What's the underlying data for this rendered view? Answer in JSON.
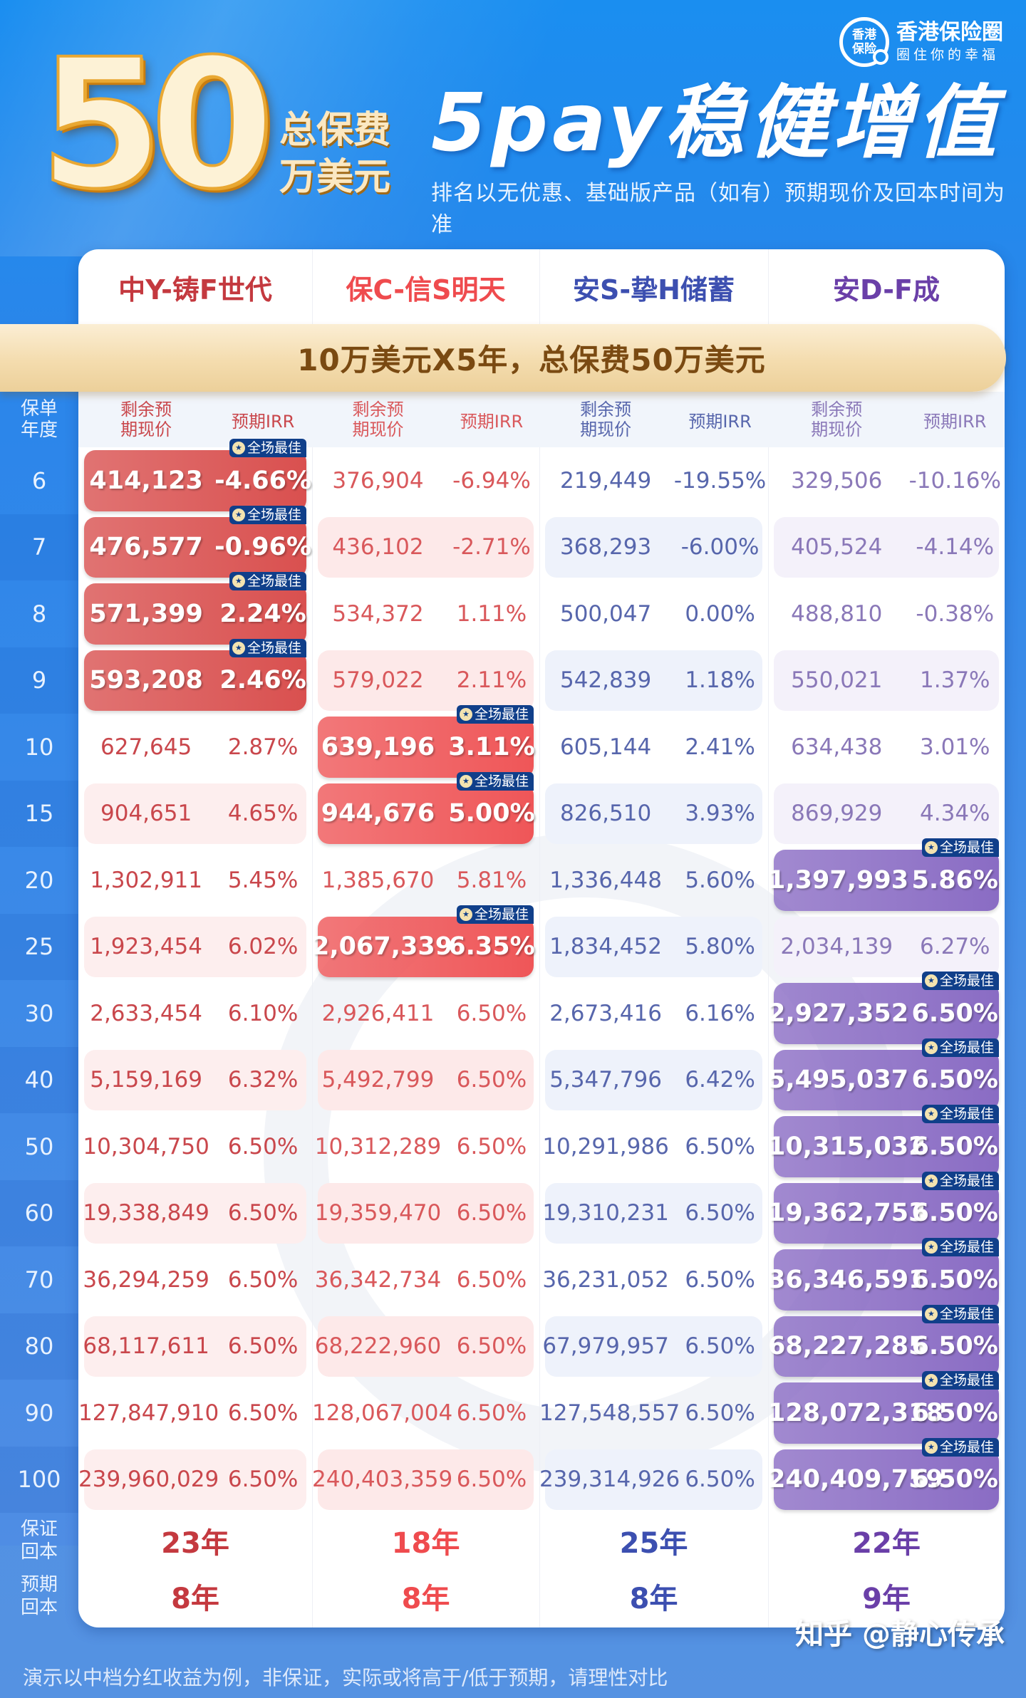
{
  "header": {
    "hero_number": "50",
    "hero_sub_1": "总保费",
    "hero_sub_2": "万美元",
    "title": "5pay稳健增值",
    "description": "排名以无优惠、基础版产品（如有）预期现价及回本时间为准",
    "logo": {
      "circle_line1": "香港",
      "circle_line2": "保险",
      "name": "香港保险圈",
      "slogan": "圈住你的幸福"
    }
  },
  "banner": "10万美元X5年，总保费50万美元",
  "table": {
    "year_header": "保单年度",
    "col_value_header": "剩余预期现价",
    "col_irr_header": "预期IRR",
    "best_badge": "全场最佳",
    "products": [
      {
        "name": "中Y-铸F世代",
        "color": "#c4393f",
        "best_bg": "#d9504f",
        "light_bg": "#fdeeee",
        "text_color": "#c9474c"
      },
      {
        "name": "保C-信S明天",
        "color": "#ef4b4e",
        "best_bg": "#ef5658",
        "light_bg": "#fde9e9",
        "text_color": "#d9585b"
      },
      {
        "name": "安S-挚H储蓄",
        "color": "#3c4fb0",
        "best_bg": "#5262bd",
        "light_bg": "#eef2fb",
        "text_color": "#5766ac"
      },
      {
        "name": "安D-F成",
        "color": "#6a3fa8",
        "best_bg": "#8a6cc4",
        "light_bg": "#f4f1fa",
        "text_color": "#8a78b8"
      }
    ],
    "rows": [
      {
        "year": "6",
        "cells": [
          {
            "value": "414,123",
            "irr": "-4.66%",
            "best": true
          },
          {
            "value": "376,904",
            "irr": "-6.94%",
            "best": false
          },
          {
            "value": "219,449",
            "irr": "-19.55%",
            "best": false
          },
          {
            "value": "329,506",
            "irr": "-10.16%",
            "best": false
          }
        ]
      },
      {
        "year": "7",
        "cells": [
          {
            "value": "476,577",
            "irr": "-0.96%",
            "best": true
          },
          {
            "value": "436,102",
            "irr": "-2.71%",
            "best": false
          },
          {
            "value": "368,293",
            "irr": "-6.00%",
            "best": false
          },
          {
            "value": "405,524",
            "irr": "-4.14%",
            "best": false
          }
        ]
      },
      {
        "year": "8",
        "cells": [
          {
            "value": "571,399",
            "irr": "2.24%",
            "best": true
          },
          {
            "value": "534,372",
            "irr": "1.11%",
            "best": false
          },
          {
            "value": "500,047",
            "irr": "0.00%",
            "best": false
          },
          {
            "value": "488,810",
            "irr": "-0.38%",
            "best": false
          }
        ]
      },
      {
        "year": "9",
        "cells": [
          {
            "value": "593,208",
            "irr": "2.46%",
            "best": true
          },
          {
            "value": "579,022",
            "irr": "2.11%",
            "best": false
          },
          {
            "value": "542,839",
            "irr": "1.18%",
            "best": false
          },
          {
            "value": "550,021",
            "irr": "1.37%",
            "best": false
          }
        ]
      },
      {
        "year": "10",
        "cells": [
          {
            "value": "627,645",
            "irr": "2.87%",
            "best": false
          },
          {
            "value": "639,196",
            "irr": "3.11%",
            "best": true
          },
          {
            "value": "605,144",
            "irr": "2.41%",
            "best": false
          },
          {
            "value": "634,438",
            "irr": "3.01%",
            "best": false
          }
        ]
      },
      {
        "year": "15",
        "cells": [
          {
            "value": "904,651",
            "irr": "4.65%",
            "best": false
          },
          {
            "value": "944,676",
            "irr": "5.00%",
            "best": true
          },
          {
            "value": "826,510",
            "irr": "3.93%",
            "best": false
          },
          {
            "value": "869,929",
            "irr": "4.34%",
            "best": false
          }
        ]
      },
      {
        "year": "20",
        "cells": [
          {
            "value": "1,302,911",
            "irr": "5.45%",
            "best": false
          },
          {
            "value": "1,385,670",
            "irr": "5.81%",
            "best": false
          },
          {
            "value": "1,336,448",
            "irr": "5.60%",
            "best": false
          },
          {
            "value": "1,397,993",
            "irr": "5.86%",
            "best": true
          }
        ]
      },
      {
        "year": "25",
        "cells": [
          {
            "value": "1,923,454",
            "irr": "6.02%",
            "best": false
          },
          {
            "value": "2,067,339",
            "irr": "6.35%",
            "best": true
          },
          {
            "value": "1,834,452",
            "irr": "5.80%",
            "best": false
          },
          {
            "value": "2,034,139",
            "irr": "6.27%",
            "best": false
          }
        ]
      },
      {
        "year": "30",
        "cells": [
          {
            "value": "2,633,454",
            "irr": "6.10%",
            "best": false
          },
          {
            "value": "2,926,411",
            "irr": "6.50%",
            "best": false
          },
          {
            "value": "2,673,416",
            "irr": "6.16%",
            "best": false
          },
          {
            "value": "2,927,352",
            "irr": "6.50%",
            "best": true
          }
        ]
      },
      {
        "year": "40",
        "cells": [
          {
            "value": "5,159,169",
            "irr": "6.32%",
            "best": false
          },
          {
            "value": "5,492,799",
            "irr": "6.50%",
            "best": false
          },
          {
            "value": "5,347,796",
            "irr": "6.42%",
            "best": false
          },
          {
            "value": "5,495,037",
            "irr": "6.50%",
            "best": true
          }
        ]
      },
      {
        "year": "50",
        "cells": [
          {
            "value": "10,304,750",
            "irr": "6.50%",
            "best": false
          },
          {
            "value": "10,312,289",
            "irr": "6.50%",
            "best": false
          },
          {
            "value": "10,291,986",
            "irr": "6.50%",
            "best": false
          },
          {
            "value": "10,315,032",
            "irr": "6.50%",
            "best": true
          }
        ]
      },
      {
        "year": "60",
        "cells": [
          {
            "value": "19,338,849",
            "irr": "6.50%",
            "best": false
          },
          {
            "value": "19,359,470",
            "irr": "6.50%",
            "best": false
          },
          {
            "value": "19,310,231",
            "irr": "6.50%",
            "best": false
          },
          {
            "value": "19,362,753",
            "irr": "6.50%",
            "best": true
          }
        ]
      },
      {
        "year": "70",
        "cells": [
          {
            "value": "36,294,259",
            "irr": "6.50%",
            "best": false
          },
          {
            "value": "36,342,734",
            "irr": "6.50%",
            "best": false
          },
          {
            "value": "36,231,052",
            "irr": "6.50%",
            "best": false
          },
          {
            "value": "36,346,591",
            "irr": "6.50%",
            "best": true
          }
        ]
      },
      {
        "year": "80",
        "cells": [
          {
            "value": "68,117,611",
            "irr": "6.50%",
            "best": false
          },
          {
            "value": "68,222,960",
            "irr": "6.50%",
            "best": false
          },
          {
            "value": "67,979,957",
            "irr": "6.50%",
            "best": false
          },
          {
            "value": "68,227,285",
            "irr": "6.50%",
            "best": true
          }
        ]
      },
      {
        "year": "90",
        "cells": [
          {
            "value": "127,847,910",
            "irr": "6.50%",
            "best": false
          },
          {
            "value": "128,067,004",
            "irr": "6.50%",
            "best": false
          },
          {
            "value": "127,548,557",
            "irr": "6.50%",
            "best": false
          },
          {
            "value": "128,072,318",
            "irr": "6.50%",
            "best": true
          }
        ]
      },
      {
        "year": "100",
        "cells": [
          {
            "value": "239,960,029",
            "irr": "6.50%",
            "best": false
          },
          {
            "value": "240,403,359",
            "irr": "6.50%",
            "best": false
          },
          {
            "value": "239,314,926",
            "irr": "6.50%",
            "best": false
          },
          {
            "value": "240,409,759",
            "irr": "6.50%",
            "best": true
          }
        ]
      }
    ],
    "payback": [
      {
        "label": "保证回本",
        "values": [
          "23年",
          "18年",
          "25年",
          "22年"
        ]
      },
      {
        "label": "预期回本",
        "values": [
          "8年",
          "8年",
          "8年",
          "9年"
        ]
      }
    ]
  },
  "footnote": "演示以中档分红收益为例，非保证，实际或将高于/低于预期，请理性对比",
  "watermark": "知乎 @静心传承",
  "chart_data": {
    "type": "table",
    "title": "5pay稳健增值 — 10万美元X5年，总保费50万美元",
    "columns": [
      "保单年度",
      "中Y-铸F世代 剩余预期现价",
      "中Y-铸F世代 预期IRR",
      "保C-信S明天 剩余预期现价",
      "保C-信S明天 预期IRR",
      "安S-挚H储蓄 剩余预期现价",
      "安S-挚H储蓄 预期IRR",
      "安D-F成 剩余预期现价",
      "安D-F成 预期IRR"
    ],
    "rows": [
      [
        6,
        414123,
        -4.66,
        376904,
        -6.94,
        219449,
        -19.55,
        329506,
        -10.16
      ],
      [
        7,
        476577,
        -0.96,
        436102,
        -2.71,
        368293,
        -6.0,
        405524,
        -4.14
      ],
      [
        8,
        571399,
        2.24,
        534372,
        1.11,
        500047,
        0.0,
        488810,
        -0.38
      ],
      [
        9,
        593208,
        2.46,
        579022,
        2.11,
        542839,
        1.18,
        550021,
        1.37
      ],
      [
        10,
        627645,
        2.87,
        639196,
        3.11,
        605144,
        2.41,
        634438,
        3.01
      ],
      [
        15,
        904651,
        4.65,
        944676,
        5.0,
        826510,
        3.93,
        869929,
        4.34
      ],
      [
        20,
        1302911,
        5.45,
        1385670,
        5.81,
        1336448,
        5.6,
        1397993,
        5.86
      ],
      [
        25,
        1923454,
        6.02,
        2067339,
        6.35,
        1834452,
        5.8,
        2034139,
        6.27
      ],
      [
        30,
        2633454,
        6.1,
        2926411,
        6.5,
        2673416,
        6.16,
        2927352,
        6.5
      ],
      [
        40,
        5159169,
        6.32,
        5492799,
        6.5,
        5347796,
        6.42,
        5495037,
        6.5
      ],
      [
        50,
        10304750,
        6.5,
        10312289,
        6.5,
        10291986,
        6.5,
        10315032,
        6.5
      ],
      [
        60,
        19338849,
        6.5,
        19359470,
        6.5,
        19310231,
        6.5,
        19362753,
        6.5
      ],
      [
        70,
        36294259,
        6.5,
        36342734,
        6.5,
        36231052,
        6.5,
        36346591,
        6.5
      ],
      [
        80,
        68117611,
        6.5,
        68222960,
        6.5,
        67979957,
        6.5,
        68227285,
        6.5
      ],
      [
        90,
        127847910,
        6.5,
        128067004,
        6.5,
        127548557,
        6.5,
        128072318,
        6.5
      ],
      [
        100,
        239960029,
        6.5,
        240403359,
        6.5,
        239314926,
        6.5,
        240409759,
        6.5
      ]
    ],
    "payback_guaranteed_years": [
      23,
      18,
      25,
      22
    ],
    "payback_expected_years": [
      8,
      8,
      8,
      9
    ]
  }
}
